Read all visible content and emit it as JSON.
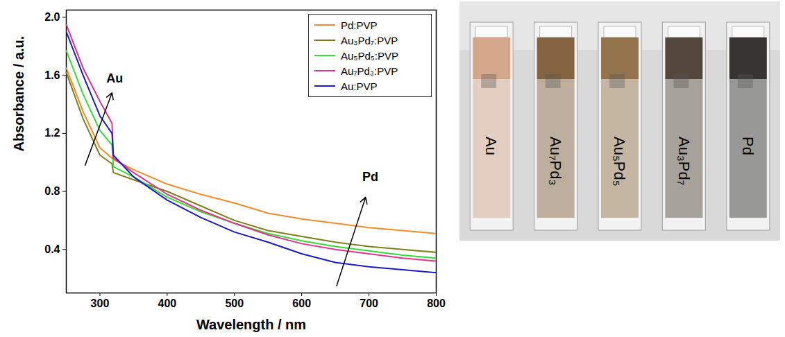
{
  "chart_data": {
    "type": "line",
    "x_label": "Wavelength / nm",
    "y_label": "Absorbance / a.u.",
    "x": [
      250,
      275,
      300,
      318,
      320,
      350,
      400,
      450,
      500,
      550,
      600,
      650,
      700,
      750,
      800
    ],
    "series": [
      {
        "name": "Pd:PVP",
        "color": "#f28c28",
        "values": [
          1.65,
          1.35,
          1.1,
          1.03,
          1.02,
          0.95,
          0.85,
          0.78,
          0.72,
          0.65,
          0.61,
          0.58,
          0.55,
          0.53,
          0.51
        ]
      },
      {
        "name": "Au₃Pd₇:PVP",
        "color": "#7f7f1a",
        "values": [
          1.62,
          1.3,
          1.05,
          0.99,
          0.93,
          0.88,
          0.8,
          0.7,
          0.6,
          0.53,
          0.49,
          0.45,
          0.42,
          0.4,
          0.38
        ]
      },
      {
        "name": "Au₅Pd₅:PVP",
        "color": "#33dd33",
        "values": [
          1.77,
          1.47,
          1.22,
          1.12,
          0.97,
          0.9,
          0.76,
          0.66,
          0.58,
          0.51,
          0.46,
          0.42,
          0.39,
          0.36,
          0.34
        ]
      },
      {
        "name": "Au₇Pd₃:PVP",
        "color": "#e0338a",
        "values": [
          1.95,
          1.65,
          1.42,
          1.27,
          1.03,
          0.93,
          0.78,
          0.67,
          0.58,
          0.5,
          0.44,
          0.4,
          0.37,
          0.34,
          0.32
        ]
      },
      {
        "name": "Au:PVP",
        "color": "#1a1acc",
        "values": [
          1.9,
          1.6,
          1.32,
          1.2,
          1.05,
          0.9,
          0.74,
          0.62,
          0.52,
          0.45,
          0.37,
          0.31,
          0.28,
          0.26,
          0.24
        ]
      }
    ],
    "xlim": [
      250,
      800
    ],
    "xticks": [
      300,
      400,
      500,
      600,
      700,
      800
    ],
    "ylim": [
      0.1,
      2.05
    ],
    "yticks": [
      0.4,
      0.8,
      1.2,
      1.6,
      {
        "value": 2,
        "label": "2.0"
      }
    ],
    "legend": "top-right",
    "annotations": [
      {
        "text": "Au",
        "x": 322,
        "y": 1.58,
        "arrow": [
          278,
          0.98,
          318,
          1.48
        ]
      },
      {
        "text": "Pd",
        "x": 702,
        "y": 0.9,
        "arrow": [
          652,
          0.15,
          695,
          0.76
        ]
      }
    ]
  },
  "photo": {
    "samples": [
      {
        "label": "Au",
        "color": "#d2a285"
      },
      {
        "label": "Au₇Pd₃",
        "color": "#7c5b36"
      },
      {
        "label": "Au₅Pd₅",
        "color": "#8d6c42"
      },
      {
        "label": "Au₃Pd₇",
        "color": "#4b3d31"
      },
      {
        "label": "Pd",
        "color": "#2b2a29"
      }
    ]
  }
}
